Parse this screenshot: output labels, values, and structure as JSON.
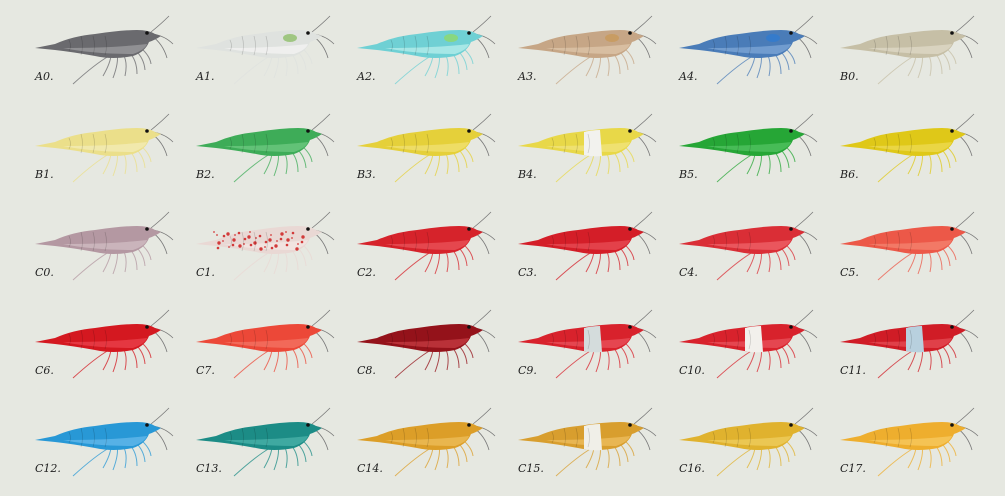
{
  "background": "#e6e8e1",
  "specimens": [
    {
      "label": "A0.",
      "color": "#6a6a6e",
      "belly": "#9a9a9c"
    },
    {
      "label": "A1.",
      "color": "#dfe2df",
      "belly": "#f2f3f1",
      "spot": "#8fbf6a"
    },
    {
      "label": "A2.",
      "color": "#6fd0d4",
      "belly": "#b4ecea",
      "spot": "#8fd86a"
    },
    {
      "label": "A3.",
      "color": "#c6a686",
      "belly": "#dcc4a8",
      "spot": "#c89a5a"
    },
    {
      "label": "A4.",
      "color": "#4a7cb8",
      "belly": "#7aa4d4",
      "spot": "#2f7ad0"
    },
    {
      "label": "B0.",
      "color": "#c6bfa6",
      "belly": "#ddd8c6"
    },
    {
      "label": "B1.",
      "color": "#ebdf8a",
      "belly": "#f3ebb4"
    },
    {
      "label": "B2.",
      "color": "#3eac58",
      "belly": "#6cc880"
    },
    {
      "label": "B3.",
      "color": "#e5d03a",
      "belly": "#f0e070"
    },
    {
      "label": "B4.",
      "color": "#e8d848",
      "belly": "#f0e47a",
      "band": "#f2f2ee"
    },
    {
      "label": "B5.",
      "color": "#26a636",
      "belly": "#50c260"
    },
    {
      "label": "B6.",
      "color": "#dfc818",
      "belly": "#ecda50"
    },
    {
      "label": "C0.",
      "color": "#b498a2",
      "belly": "#d0bcc2"
    },
    {
      "label": "C1.",
      "color": "#e9d8d4",
      "belly": "#f2e6e2",
      "speckle": "#d23a3a"
    },
    {
      "label": "C2.",
      "color": "#d6232b",
      "belly": "#e85058"
    },
    {
      "label": "C3.",
      "color": "#d41e28",
      "belly": "#e64a52"
    },
    {
      "label": "C4.",
      "color": "#da2e36",
      "belly": "#ee6068"
    },
    {
      "label": "C5.",
      "color": "#ec5848",
      "belly": "#f4826e"
    },
    {
      "label": "C6.",
      "color": "#d41820",
      "belly": "#e8404a"
    },
    {
      "label": "C7.",
      "color": "#ec4838",
      "belly": "#f47262"
    },
    {
      "label": "C8.",
      "color": "#94121a",
      "belly": "#c23a40"
    },
    {
      "label": "C9.",
      "color": "#d8222c",
      "belly": "#e8505a",
      "band": "#d4dcdc"
    },
    {
      "label": "C10.",
      "color": "#d8222c",
      "belly": "#e8505a",
      "band": "#f2f0ec"
    },
    {
      "label": "C11.",
      "color": "#d01c26",
      "belly": "#e44a52",
      "band": "#b8d0de"
    },
    {
      "label": "C12.",
      "color": "#2898d6",
      "belly": "#62b8ea"
    },
    {
      "label": "C13.",
      "color": "#1c8c86",
      "belly": "#48b0a8"
    },
    {
      "label": "C14.",
      "color": "#dc9e28",
      "belly": "#ecbc58"
    },
    {
      "label": "C15.",
      "color": "#d89e2e",
      "belly": "#ecbc5c",
      "band": "#f0efe8"
    },
    {
      "label": "C16.",
      "color": "#e0b22e",
      "belly": "#eecc5c"
    },
    {
      "label": "C17.",
      "color": "#eeae2e",
      "belly": "#f6c85e"
    }
  ]
}
